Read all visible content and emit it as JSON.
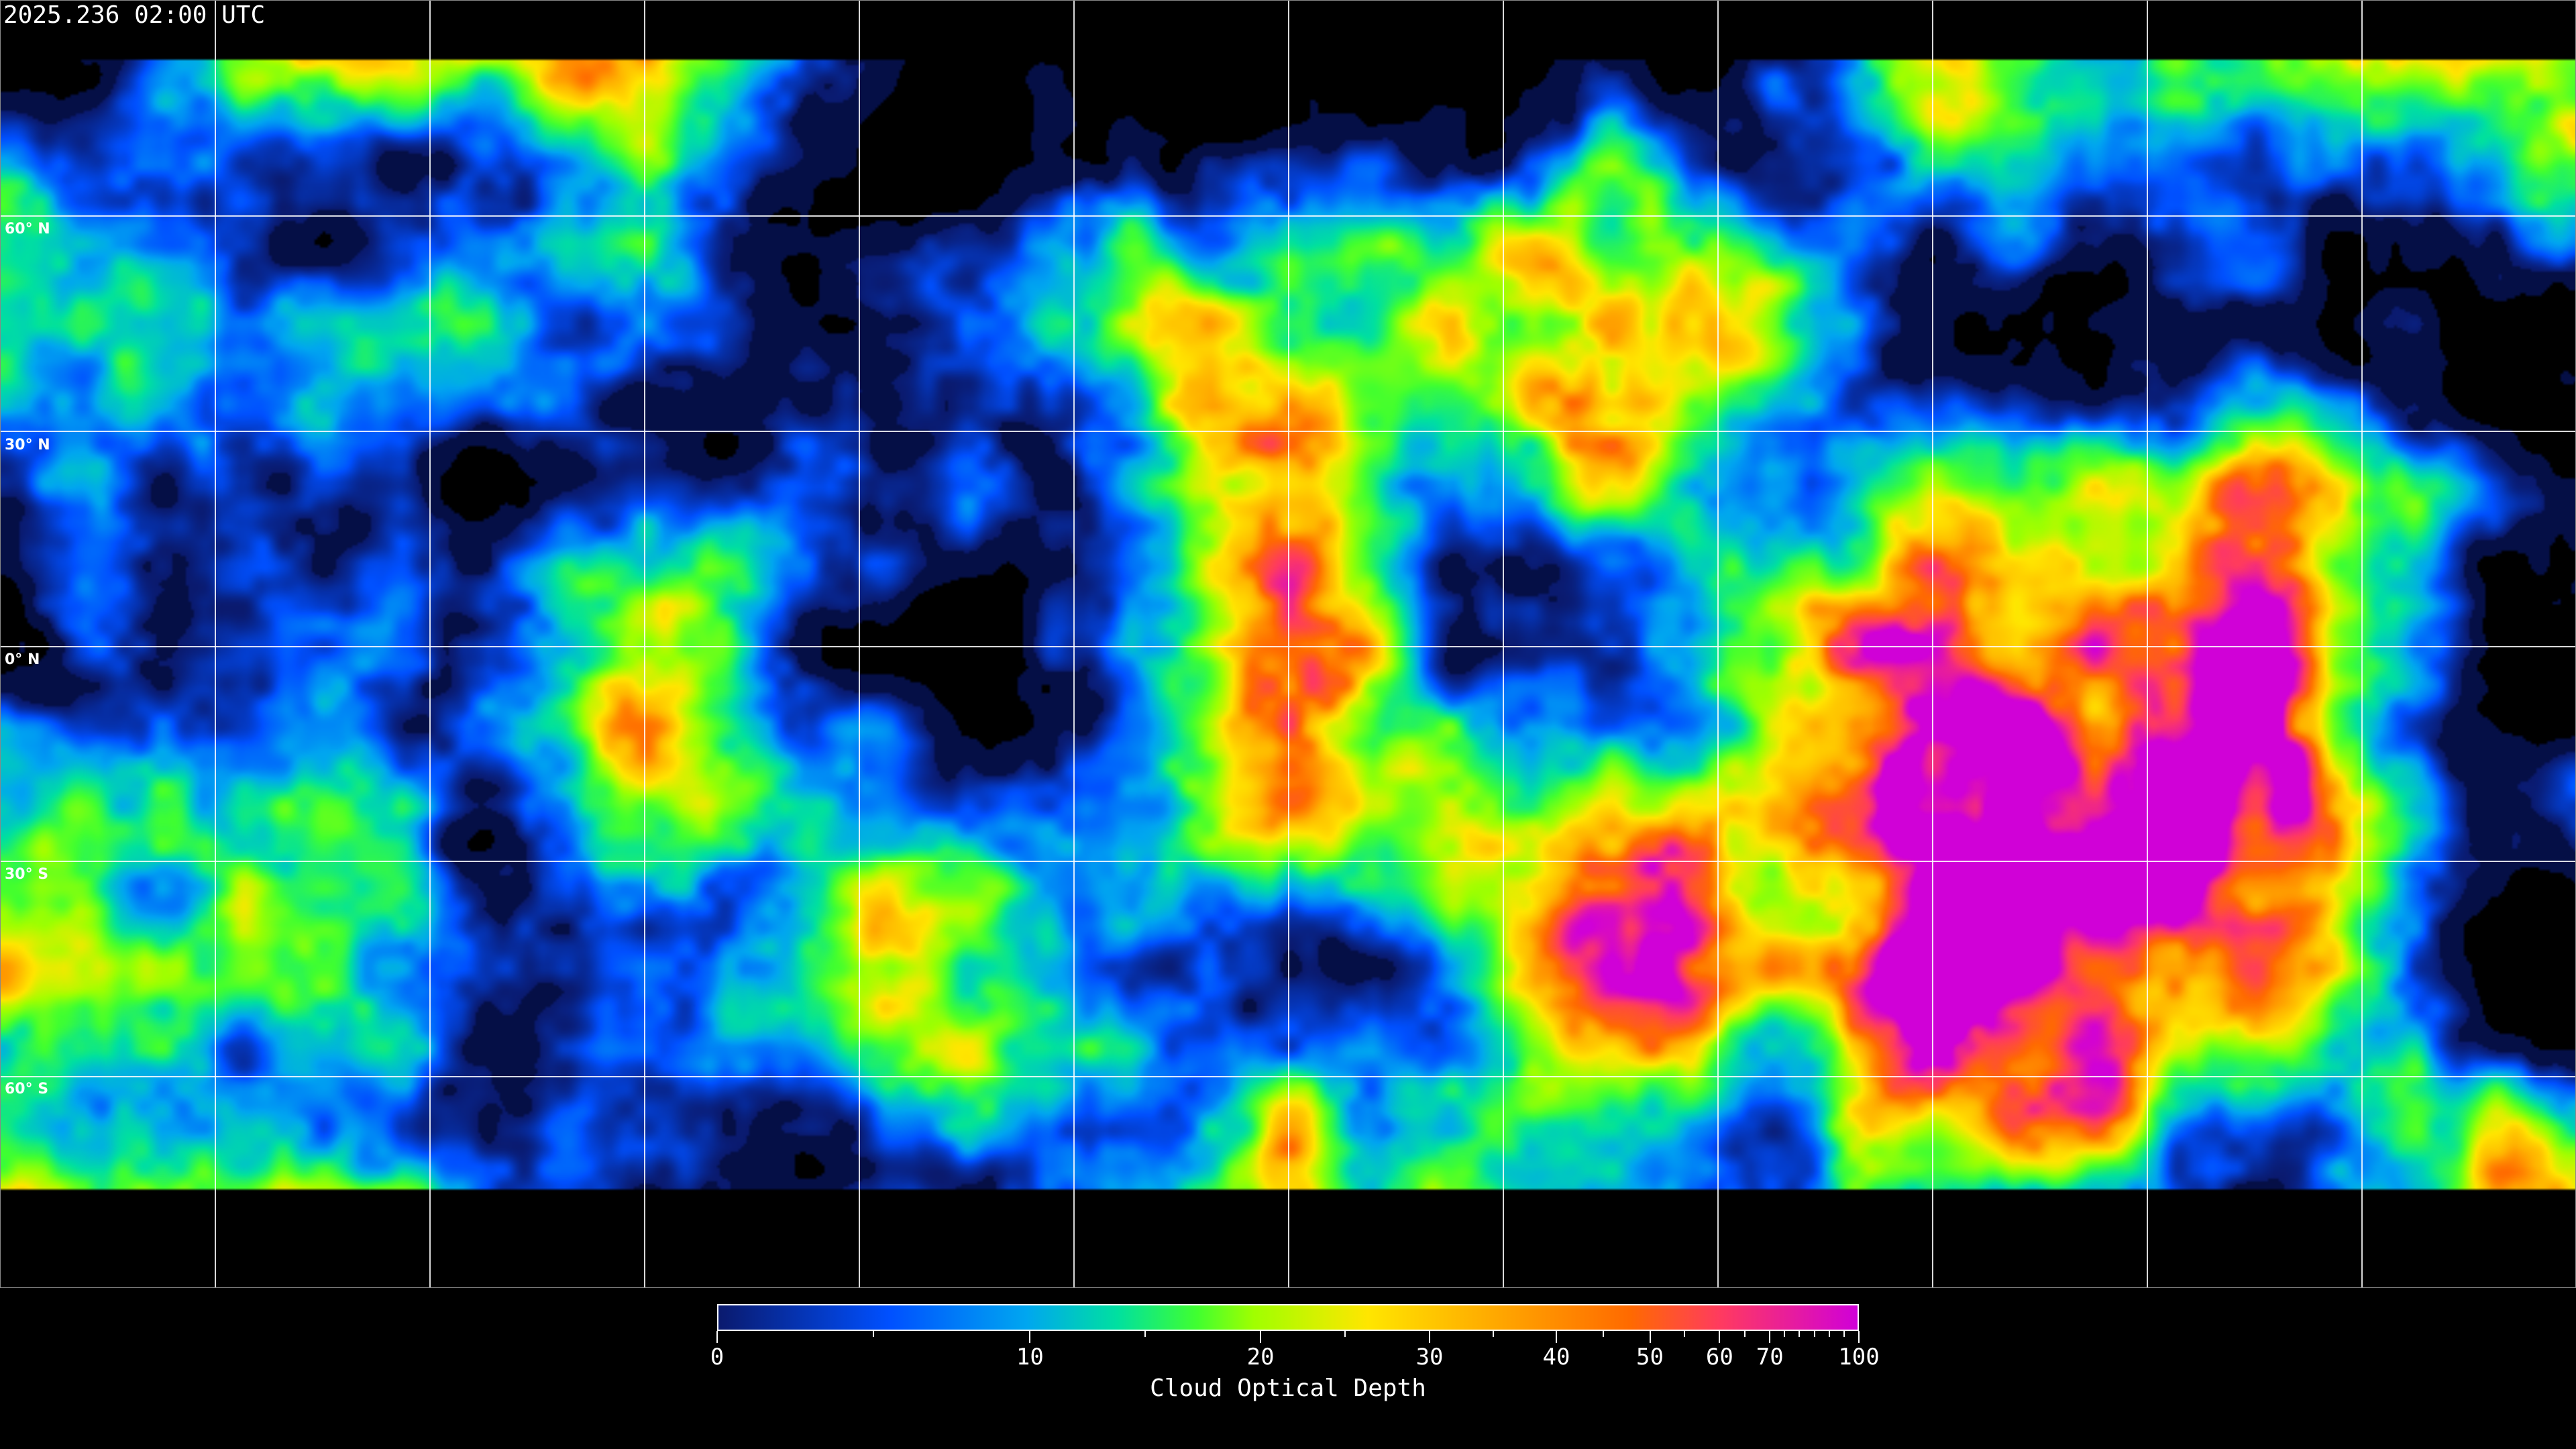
{
  "title": "2025.236 02:00 UTC",
  "map": {
    "projection": "equirectangular",
    "longitude_grid_step_deg": 30,
    "latitude_labels": [
      "60° N",
      "30° N",
      "0° N",
      "30° S",
      "60° S"
    ],
    "gridline_color": "#ffffff",
    "coastline_color": "#ffffff",
    "no_data_color": "#000000"
  },
  "colorbar": {
    "title": "Cloud Optical Depth",
    "range": [
      0,
      100
    ],
    "major_ticks": [
      "0",
      "10",
      "20",
      "30",
      "40",
      "50",
      "60",
      "70",
      "100"
    ],
    "minor_ticks": [
      5,
      15,
      25,
      35,
      45,
      55,
      65,
      75,
      80,
      85,
      90,
      95
    ],
    "colors": [
      "#0a1a6e",
      "#0050ff",
      "#00a6f0",
      "#00e0a0",
      "#40ff30",
      "#a0ff00",
      "#ffe600",
      "#ffb400",
      "#ff6a00",
      "#ff3a60",
      "#d000d8"
    ]
  }
}
